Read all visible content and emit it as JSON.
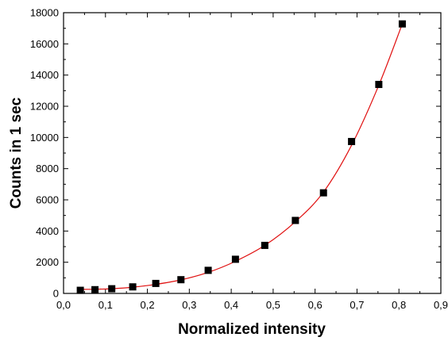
{
  "chart_data": {
    "type": "scatter",
    "title": "",
    "xlabel": "Normalized intensity",
    "ylabel": "Counts in 1 sec",
    "xlim": [
      0.0,
      0.9
    ],
    "ylim": [
      0,
      18000
    ],
    "x_ticks": [
      "0,0",
      "0,1",
      "0,2",
      "0,3",
      "0,4",
      "0,5",
      "0,6",
      "0,7",
      "0,8",
      "0,9"
    ],
    "y_ticks": [
      "0",
      "2000",
      "4000",
      "6000",
      "8000",
      "10000",
      "12000",
      "14000",
      "16000",
      "18000"
    ],
    "grid": false,
    "legend": "none",
    "series": [
      {
        "kind": "points",
        "marker": "square",
        "color": "#000000",
        "x": [
          0.04,
          0.075,
          0.115,
          0.165,
          0.22,
          0.28,
          0.345,
          0.41,
          0.48,
          0.553,
          0.62,
          0.687,
          0.752,
          0.808
        ],
        "y": [
          200,
          240,
          300,
          420,
          640,
          880,
          1480,
          2190,
          3080,
          4680,
          6450,
          9740,
          13400,
          17280
        ]
      },
      {
        "kind": "fit",
        "color": "#e01010",
        "x": [
          0.04,
          0.075,
          0.115,
          0.165,
          0.22,
          0.28,
          0.345,
          0.41,
          0.48,
          0.553,
          0.62,
          0.687,
          0.752,
          0.808
        ],
        "y": [
          260,
          270,
          300,
          400,
          580,
          870,
          1350,
          2060,
          3080,
          4600,
          6500,
          9500,
          13350,
          17280
        ]
      }
    ]
  }
}
